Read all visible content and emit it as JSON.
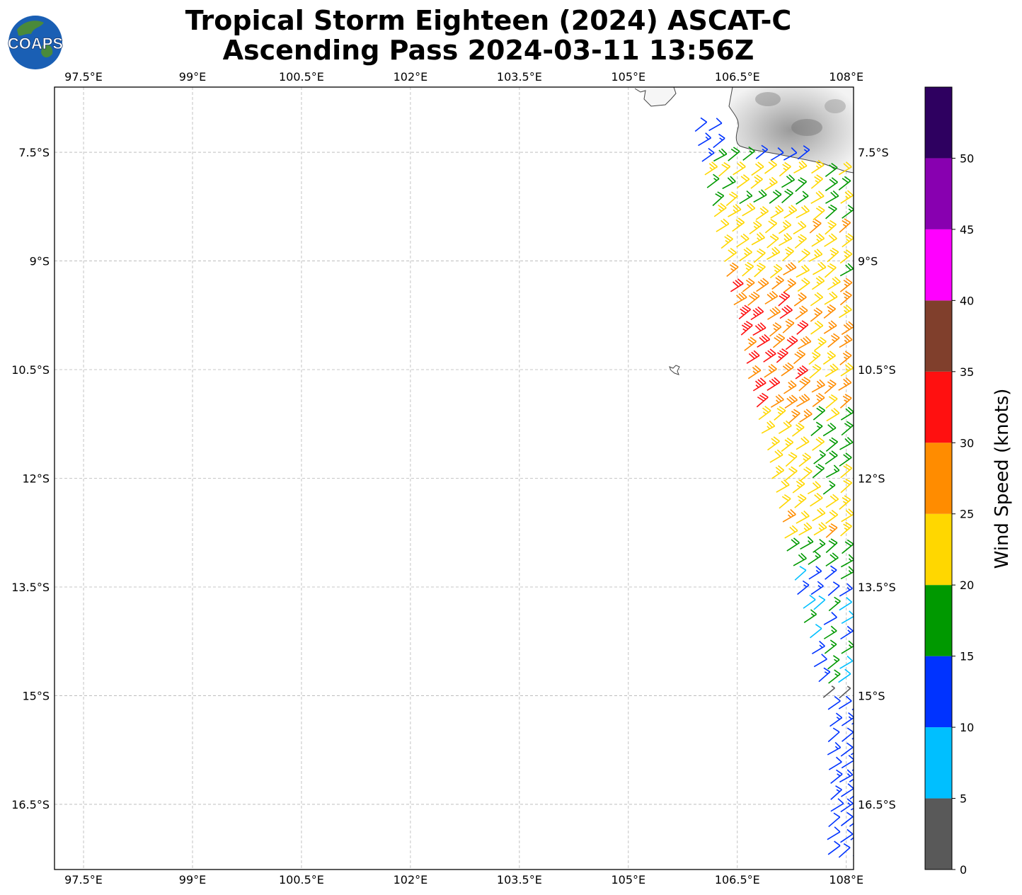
{
  "title": {
    "line1": "Tropical Storm Eighteen (2024) ASCAT-C",
    "line2": "Ascending Pass 2024-03-11 13:56Z"
  },
  "logo": {
    "text": "COAPS",
    "icon": "globe-logo-icon",
    "colors": {
      "ocean": "#1a5fb4",
      "land": "#4a8a3a"
    }
  },
  "map": {
    "lon_ticks": [
      "97.5°E",
      "99°E",
      "100.5°E",
      "102°E",
      "103.5°E",
      "105°E",
      "106.5°E",
      "108°E"
    ],
    "lat_ticks": [
      "7.5°S",
      "9°S",
      "10.5°S",
      "12°S",
      "13.5°S",
      "15°S",
      "16.5°S"
    ],
    "lon_range": [
      97.1,
      108.1
    ],
    "lat_range": [
      -17.4,
      -6.6
    ],
    "gridlines": true
  },
  "colorbar": {
    "label": "Wind Speed (knots)",
    "ticks": [
      "0",
      "5",
      "10",
      "15",
      "20",
      "25",
      "30",
      "35",
      "40",
      "45",
      "50"
    ],
    "bins": [
      {
        "min": 0,
        "max": 5,
        "color": "#595959"
      },
      {
        "min": 5,
        "max": 10,
        "color": "#00bfff"
      },
      {
        "min": 10,
        "max": 15,
        "color": "#0033ff"
      },
      {
        "min": 15,
        "max": 20,
        "color": "#009900"
      },
      {
        "min": 20,
        "max": 25,
        "color": "#ffd700"
      },
      {
        "min": 25,
        "max": 30,
        "color": "#ff8c00"
      },
      {
        "min": 30,
        "max": 35,
        "color": "#ff1010"
      },
      {
        "min": 35,
        "max": 40,
        "color": "#803f2c"
      },
      {
        "min": 40,
        "max": 45,
        "color": "#ff00ff"
      },
      {
        "min": 45,
        "max": 50,
        "color": "#8800b0"
      },
      {
        "min": 50,
        "max": 55,
        "color": "#2e0060"
      }
    ]
  }
}
